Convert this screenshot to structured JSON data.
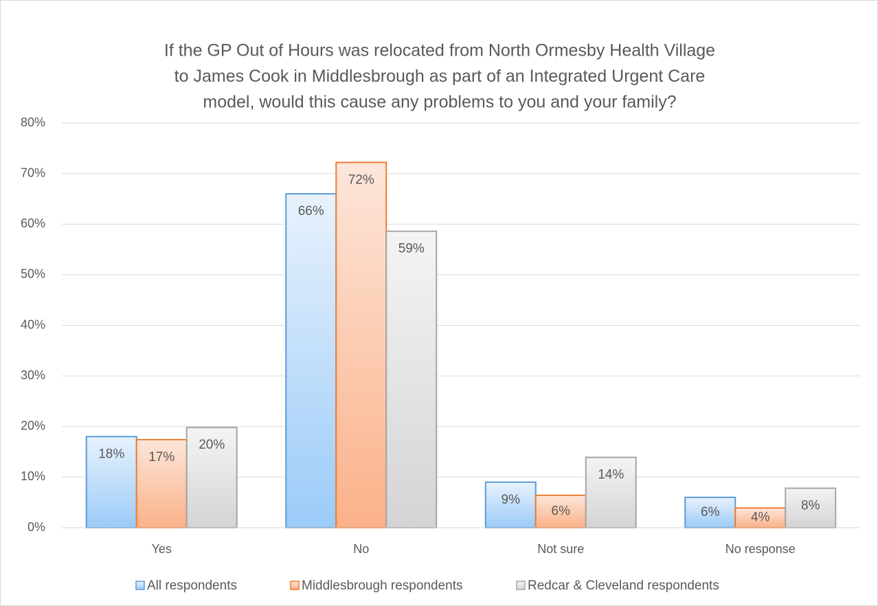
{
  "chart_data": {
    "type": "bar",
    "title": [
      "If the GP Out of Hours was relocated from North Ormesby Health Village",
      "to James Cook in Middlesbrough as part of an Integrated Urgent Care",
      "model, would this cause any problems to you and your family?"
    ],
    "categories": [
      "Yes",
      "No",
      "Not sure",
      "No response"
    ],
    "series": [
      {
        "name": "All respondents",
        "color": "#5b9bd5",
        "values": [
          18,
          66,
          9,
          6
        ],
        "value_labels": [
          "18%",
          "66%",
          "9%",
          "6%"
        ]
      },
      {
        "name": "Middlesbrough respondents",
        "color": "#ed7d31",
        "values": [
          17.4,
          72.2,
          6.4,
          3.9
        ],
        "value_labels": [
          "17%",
          "72%",
          "6%",
          "4%"
        ]
      },
      {
        "name": "Redcar & Cleveland respondents",
        "color": "#a5a5a5",
        "values": [
          19.8,
          58.6,
          13.9,
          7.8
        ],
        "value_labels": [
          "20%",
          "59%",
          "14%",
          "8%"
        ]
      }
    ],
    "ylim": [
      0,
      80
    ],
    "yticks": [
      {
        "value": 0,
        "label": "0%"
      },
      {
        "value": 10,
        "label": "10%"
      },
      {
        "value": 20,
        "label": "20%"
      },
      {
        "value": 30,
        "label": "30%"
      },
      {
        "value": 40,
        "label": "40%"
      },
      {
        "value": 50,
        "label": "50%"
      },
      {
        "value": 60,
        "label": "60%"
      },
      {
        "value": 70,
        "label": "70%"
      },
      {
        "value": 80,
        "label": "80%"
      }
    ],
    "grid": true,
    "legend": "bottom"
  }
}
